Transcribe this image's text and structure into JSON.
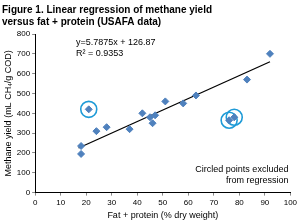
{
  "chart_data": {
    "type": "scatter",
    "title": [
      "Figure 1. Linear regression of methane yield",
      "versus fat + protein (USAFA data)"
    ],
    "x_label": "Fat + protein (% dry weight)",
    "y_label": "Methane yield (mL CH₄/g COD)",
    "xlim": [
      0,
      100
    ],
    "xticks": [
      0,
      10,
      20,
      30,
      40,
      50,
      60,
      70,
      80,
      90,
      100
    ],
    "ylim": [
      0,
      800
    ],
    "yticks": [
      0,
      100,
      200,
      300,
      400,
      500,
      600,
      700,
      800
    ],
    "grid": false,
    "equation": [
      "y=5.7875x + 126.87",
      "R² = 0.9353"
    ],
    "annotation": [
      "Circled points excluded",
      "from regression"
    ],
    "series": [
      {
        "type": "scatter",
        "color": "#4f81bd",
        "marker": "diamond",
        "x": [
          18,
          18,
          21,
          24,
          28,
          37,
          42,
          45,
          46,
          47,
          51,
          58,
          63,
          76,
          78,
          83,
          92
        ],
        "values": [
          195,
          235,
          420,
          310,
          330,
          320,
          400,
          380,
          350,
          390,
          460,
          450,
          490,
          365,
          380,
          570,
          700
        ]
      },
      {
        "type": "line",
        "color": "#000000",
        "line_style": "solid",
        "x": [
          17,
          92
        ],
        "values": [
          225,
          660
        ]
      },
      {
        "type": "scatter",
        "color": "#1f9bd7",
        "marker": "circle",
        "x": [
          21,
          76,
          78
        ],
        "values": [
          420,
          365,
          380
        ]
      }
    ]
  }
}
